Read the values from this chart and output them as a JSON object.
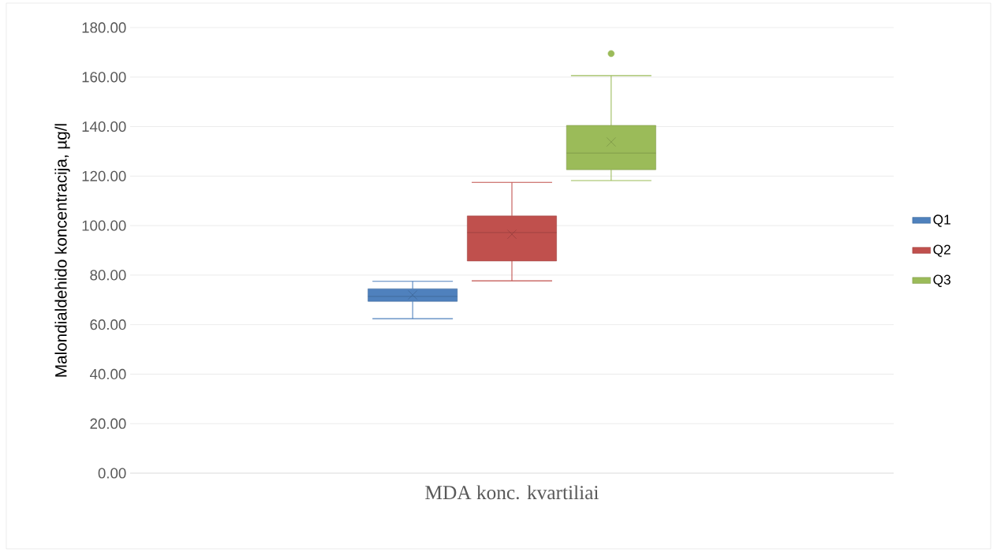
{
  "chart_data": {
    "type": "box",
    "xlabel": "MDA konc. kvartiliai",
    "ylabel": "Malondialdehido  koncentracija, µg/l",
    "categories": [
      null
    ],
    "series": [
      {
        "name": "Q1",
        "color": "#4f81bd",
        "boxes": [
          {
            "low": 62.4,
            "q1": 69.4,
            "median": 71.4,
            "q3": 74.5,
            "high": 77.5,
            "mean": 72.0
          }
        ]
      },
      {
        "name": "Q2",
        "color": "#c0504d",
        "boxes": [
          {
            "low": 77.7,
            "q1": 85.7,
            "median": 97.2,
            "q3": 103.9,
            "high": 117.5,
            "mean": 96.5
          }
        ]
      },
      {
        "name": "Q3",
        "color": "#9bbb59",
        "boxes": [
          {
            "low": 118.2,
            "q1": 122.6,
            "median": 129.3,
            "q3": 140.5,
            "high": 160.6,
            "mean": 133.8,
            "outliers": [
              169.5
            ]
          }
        ]
      }
    ],
    "ylim": [
      0,
      180
    ],
    "yticks": [
      {
        "value": 0,
        "label": "0.00"
      },
      {
        "value": 20,
        "label": "20.00"
      },
      {
        "value": 40,
        "label": "40.00"
      },
      {
        "value": 60,
        "label": "60.00"
      },
      {
        "value": 80,
        "label": "80.00"
      },
      {
        "value": 100,
        "label": "100.00"
      },
      {
        "value": 120,
        "label": "120.00"
      },
      {
        "value": 140,
        "label": "140.00"
      },
      {
        "value": 160,
        "label": "160.00"
      },
      {
        "value": 180,
        "label": "180.00"
      }
    ],
    "grid": "y",
    "legend": "right"
  }
}
